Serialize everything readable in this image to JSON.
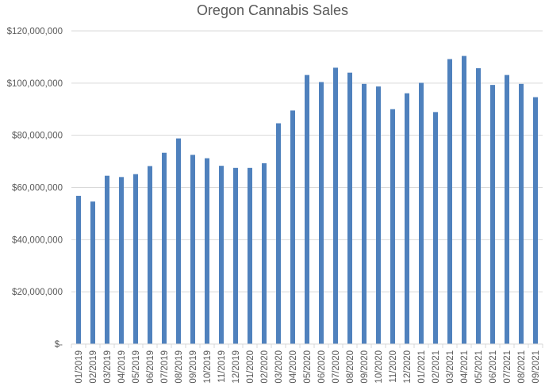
{
  "chart_data": {
    "type": "bar",
    "title": "Oregon Cannabis Sales",
    "xlabel": "",
    "ylabel": "",
    "categories": [
      "01/2019",
      "02/2019",
      "03/2019",
      "04/2019",
      "05/2019",
      "06/2019",
      "07/2019",
      "08/2019",
      "09/2019",
      "10/2019",
      "11/2019",
      "12/2019",
      "01/2020",
      "02/2020",
      "03/2020",
      "04/2020",
      "05/2020",
      "06/2020",
      "07/2020",
      "08/2020",
      "09/2020",
      "10/2020",
      "11/2020",
      "12/2020",
      "01/2021",
      "02/2021",
      "03/2021",
      "04/2021",
      "05/2021",
      "06/2021",
      "07/2021",
      "08/2021",
      "09/2021"
    ],
    "values": [
      56800000,
      54600000,
      64500000,
      64000000,
      65100000,
      68200000,
      73300000,
      78800000,
      72500000,
      71200000,
      68300000,
      67500000,
      67500000,
      69300000,
      84600000,
      89500000,
      103100000,
      100400000,
      105900000,
      104000000,
      99700000,
      98700000,
      90000000,
      96100000,
      100100000,
      88900000,
      109200000,
      110400000,
      105700000,
      99300000,
      103100000,
      99700000,
      94600000
    ],
    "y_ticks": [
      "$-",
      "$20,000,000",
      "$40,000,000",
      "$60,000,000",
      "$80,000,000",
      "$100,000,000",
      "$120,000,000"
    ],
    "ylim": [
      0,
      120000000
    ],
    "grid": true,
    "legend": "none",
    "bar_color": "#4f81bd",
    "grid_color": "#d9d9d9"
  }
}
